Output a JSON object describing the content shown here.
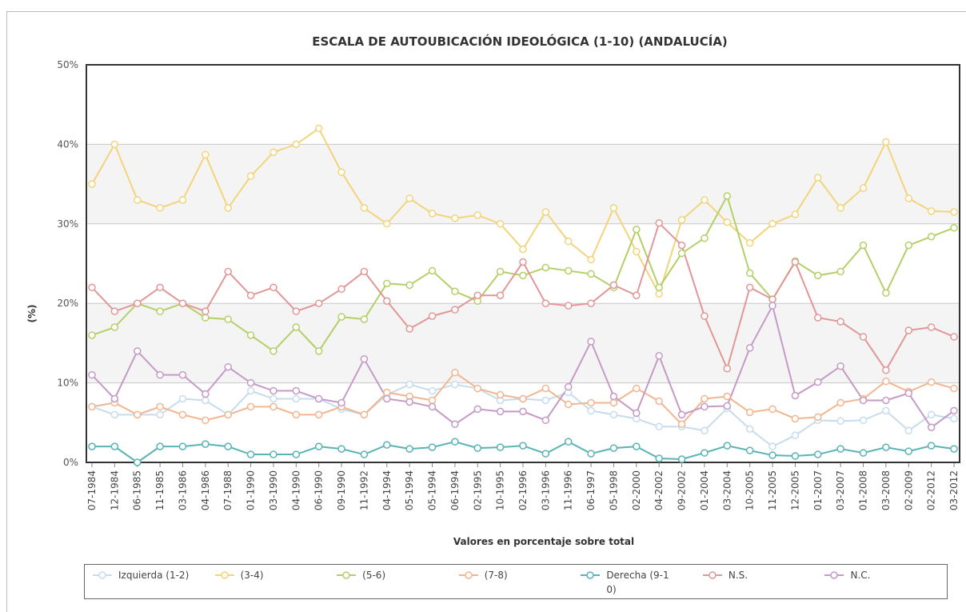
{
  "chart_data": {
    "type": "line",
    "title": "ESCALA DE AUTOUBICACIÓN IDEOLÓGICA (1-10) (ANDALUCÍA)",
    "x_label": "Valores en porcentaje sobre total",
    "y_label": "(%)",
    "categories": [
      "07-1984",
      "12-1984",
      "06-1985",
      "11-1985",
      "03-1986",
      "04-1986",
      "07-1988",
      "01-1990",
      "03-1990",
      "04-1990",
      "06-1990",
      "09-1990",
      "11-1992",
      "04-1994",
      "05-1994",
      "05-1994",
      "06-1994",
      "02-1995",
      "10-1995",
      "02-1996",
      "03-1996",
      "11-1996",
      "06-1997",
      "05-1998",
      "02-2000",
      "04-2002",
      "09-2002",
      "01-2004",
      "03-2004",
      "10-2005",
      "11-2005",
      "12-2005",
      "01-2007",
      "03-2007",
      "01-2008",
      "03-2008",
      "02-2009",
      "02-2012",
      "03-2012"
    ],
    "series": [
      {
        "name": "Izquierda (1-2)",
        "color": "#c6dcee",
        "values": [
          7,
          6,
          6,
          6,
          8,
          7.8,
          6,
          9,
          8,
          8,
          8,
          6.7,
          6,
          8.5,
          9.8,
          9,
          9.8,
          9.3,
          7.8,
          8,
          7.8,
          8.8,
          6.5,
          6,
          5.5,
          4.5,
          4.5,
          4,
          6.8,
          4.2,
          2,
          3.4,
          5.3,
          5.2,
          5.3,
          6.5,
          4,
          6,
          5.5
        ]
      },
      {
        "name": "(3-4)",
        "color": "#f3d47a",
        "values": [
          35,
          40,
          33,
          32,
          33,
          38.7,
          32,
          36,
          39,
          40,
          42,
          36.5,
          32,
          30,
          33.2,
          31.3,
          30.7,
          31.1,
          30,
          26.8,
          31.5,
          27.8,
          25.5,
          32,
          26.5,
          21.2,
          30.5,
          33,
          30.2,
          27.6,
          30,
          31.2,
          35.8,
          32,
          34.5,
          40.3,
          33.2,
          31.6,
          31.5
        ]
      },
      {
        "name": "(5-6)",
        "color": "#b4cf68",
        "values": [
          16,
          17,
          20,
          19,
          20,
          18.2,
          18,
          16,
          14,
          17,
          14,
          18.3,
          18,
          22.5,
          22.3,
          24.1,
          21.5,
          20.3,
          24,
          23.5,
          24.5,
          24.1,
          23.7,
          22,
          29.3,
          22,
          26.3,
          28.2,
          33.5,
          23.8,
          20.5,
          25.3,
          23.5,
          24,
          27.3,
          21.3,
          27.3,
          28.4,
          29.5
        ]
      },
      {
        "name": "(7-8)",
        "color": "#f1b690",
        "values": [
          7,
          7.5,
          6,
          7,
          6,
          5.3,
          6,
          7,
          7,
          6,
          6,
          7,
          6,
          8.8,
          8.3,
          7.8,
          11.3,
          9.3,
          8.5,
          8,
          9.3,
          7.3,
          7.5,
          7.5,
          9.3,
          7.7,
          4.8,
          8,
          8.3,
          6.3,
          6.7,
          5.5,
          5.7,
          7.5,
          8,
          10.2,
          8.9,
          10.1,
          9.3
        ]
      },
      {
        "name": "Derecha (9-10)",
        "color": "#5ab3b4",
        "values": [
          2,
          2,
          0,
          2,
          2,
          2.3,
          2,
          1,
          1,
          1,
          2,
          1.7,
          1,
          2.2,
          1.7,
          1.9,
          2.6,
          1.8,
          1.9,
          2.1,
          1.1,
          2.6,
          1.1,
          1.8,
          2,
          0.5,
          0.4,
          1.2,
          2.1,
          1.5,
          0.9,
          0.8,
          1,
          1.7,
          1.2,
          1.9,
          1.4,
          2.1,
          1.7
        ]
      },
      {
        "name": "N.S.",
        "color": "#e19797",
        "values": [
          22,
          19,
          20,
          22,
          20,
          19,
          24,
          21,
          22,
          19,
          20,
          21.8,
          24,
          20.3,
          16.8,
          18.4,
          19.2,
          21,
          21,
          25.2,
          20,
          19.7,
          20,
          22.3,
          21,
          30.1,
          27.3,
          18.4,
          11.8,
          22,
          20.5,
          25.2,
          18.2,
          17.7,
          15.8,
          11.6,
          16.6,
          17,
          15.8
        ]
      },
      {
        "name": "N.C.",
        "color": "#c59ac6",
        "values": [
          11,
          8,
          14,
          11,
          11,
          8.6,
          12,
          10,
          9,
          9,
          8,
          7.5,
          13,
          8,
          7.6,
          7,
          4.8,
          6.7,
          6.4,
          6.4,
          5.3,
          9.5,
          15.2,
          8.3,
          6.2,
          13.4,
          6,
          7,
          7.1,
          14.4,
          19.7,
          8.4,
          10.1,
          12.1,
          7.8,
          7.8,
          8.7,
          4.4,
          6.5
        ]
      }
    ],
    "ylim": [
      0,
      50
    ],
    "yticks": [
      {
        "value": 0,
        "label": "0%"
      },
      {
        "value": 10,
        "label": "10%"
      },
      {
        "value": 20,
        "label": "20%"
      },
      {
        "value": 30,
        "label": "30%"
      },
      {
        "value": 40,
        "label": "40%"
      },
      {
        "value": 50,
        "label": "50%"
      }
    ],
    "grid": true,
    "legend": "bottom"
  }
}
